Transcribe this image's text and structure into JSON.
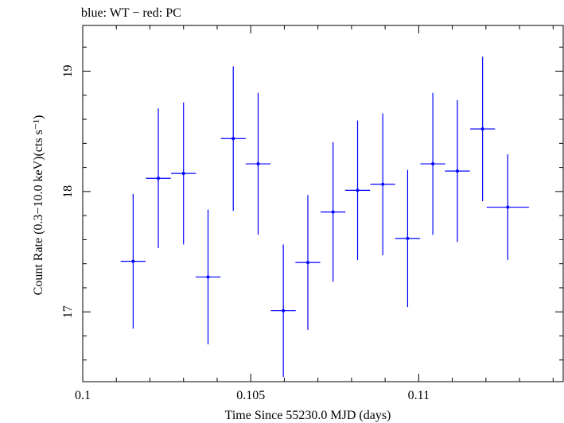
{
  "header_text": "blue: WT − red: PC",
  "chart_data": {
    "type": "scatter",
    "title": "",
    "xlabel": "Time Since 55230.0 MJD (days)",
    "ylabel": "Count Rate (0.3−10.0 keV)(cts s⁻¹)",
    "xlim": [
      0.1,
      0.1143
    ],
    "ylim": [
      16.42,
      19.38
    ],
    "x_ticks": [
      0.1,
      0.105,
      0.11
    ],
    "x_tick_labels": [
      "0.1",
      "0.105",
      "0.11"
    ],
    "y_ticks": [
      17,
      18,
      19
    ],
    "y_tick_labels": [
      "17",
      "18",
      "19"
    ],
    "grid": false,
    "series": [
      {
        "color": "#0000ff",
        "points": [
          {
            "x": 0.1015,
            "xerr": 0.00037,
            "y": 17.42,
            "yerr": 0.56
          },
          {
            "x": 0.10225,
            "xerr": 0.00037,
            "y": 18.11,
            "yerr": 0.58
          },
          {
            "x": 0.103,
            "xerr": 0.00037,
            "y": 18.15,
            "yerr": 0.59
          },
          {
            "x": 0.10373,
            "xerr": 0.00037,
            "y": 17.29,
            "yerr": 0.56
          },
          {
            "x": 0.10448,
            "xerr": 0.00037,
            "y": 18.44,
            "yerr": 0.6
          },
          {
            "x": 0.10522,
            "xerr": 0.00037,
            "y": 18.23,
            "yerr": 0.59
          },
          {
            "x": 0.10597,
            "xerr": 0.00037,
            "y": 17.01,
            "yerr": 0.55
          },
          {
            "x": 0.1067,
            "xerr": 0.00037,
            "y": 17.41,
            "yerr": 0.56
          },
          {
            "x": 0.10745,
            "xerr": 0.00037,
            "y": 17.83,
            "yerr": 0.58
          },
          {
            "x": 0.10818,
            "xerr": 0.00037,
            "y": 18.01,
            "yerr": 0.58
          },
          {
            "x": 0.10893,
            "xerr": 0.00037,
            "y": 18.06,
            "yerr": 0.59
          },
          {
            "x": 0.10967,
            "xerr": 0.00037,
            "y": 17.61,
            "yerr": 0.57
          },
          {
            "x": 0.11042,
            "xerr": 0.00037,
            "y": 18.23,
            "yerr": 0.59
          },
          {
            "x": 0.11115,
            "xerr": 0.00037,
            "y": 18.17,
            "yerr": 0.59
          },
          {
            "x": 0.1119,
            "xerr": 0.00037,
            "y": 18.52,
            "yerr": 0.6
          },
          {
            "x": 0.11265,
            "xerr": 0.00063,
            "y": 17.87,
            "yerr": 0.44
          }
        ]
      }
    ]
  }
}
